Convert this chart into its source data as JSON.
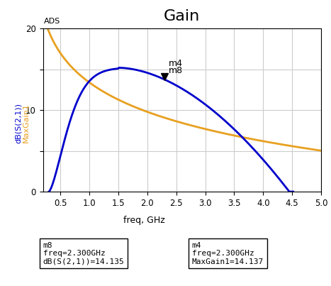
{
  "title": "Gain",
  "xlabel": "freq, GHz",
  "ylabel_blue": "dB(S(2,1))",
  "ylabel_orange": "MaxGain1",
  "xlim": [
    0.2,
    5.0
  ],
  "ylim": [
    0,
    20
  ],
  "xticks": [
    0.5,
    1.0,
    1.5,
    2.0,
    2.5,
    3.0,
    3.5,
    4.0,
    4.5,
    5.0
  ],
  "yticks": [
    0,
    5,
    10,
    15,
    20
  ],
  "ytick_labels": [
    "0",
    "",
    "10",
    "",
    "20"
  ],
  "blue_color": "#0000cc",
  "orange_color": "#e8a020",
  "marker_freq": 2.3,
  "marker_gain_blue": 14.135,
  "marker_gain_orange": 14.137,
  "ads_label": "ADS",
  "m4_label": "m4",
  "m8_label": "m8",
  "box1_title": "m8",
  "box1_line1": "freq=2.300GHz",
  "box1_line2": "dB(S(2,1))=14.135",
  "box2_title": "m4",
  "box2_line1": "freq=2.300GHz",
  "box2_line2": "MaxGain1=14.137",
  "background_color": "#ffffff",
  "grid_color": "#cccccc"
}
